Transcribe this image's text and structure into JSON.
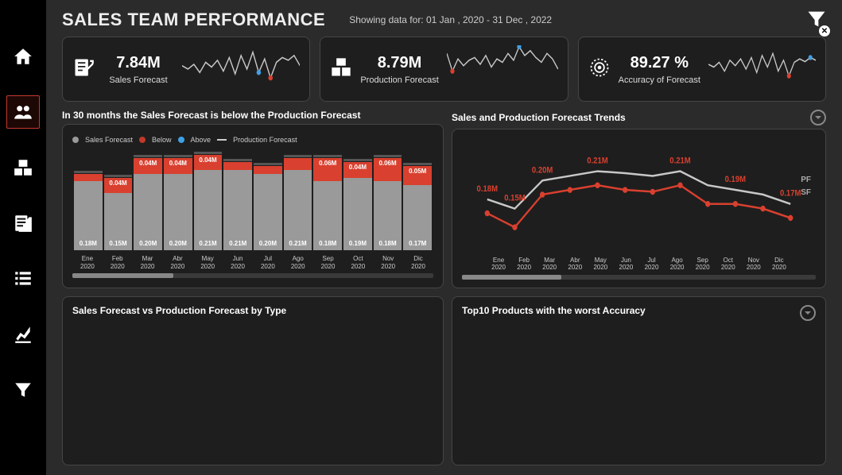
{
  "colors": {
    "bg": "#2b2b2b",
    "panel": "#1e1e1e",
    "border": "#454545",
    "red": "#c0392b",
    "red_bright": "#d9402f",
    "grey_bar": "#9a9a9a",
    "grey_line": "#c8c8c8",
    "blue_dot": "#3fa0e6",
    "text": "#ffffff",
    "muted": "#cccccc"
  },
  "header": {
    "title": "SALES TEAM PERFORMANCE",
    "date_range": "Showing data for: 01 Jan , 2020 - 31 Dec , 2022"
  },
  "kpi": [
    {
      "value": "7.84M",
      "label": "Sales Forecast",
      "spark": [
        40,
        35,
        42,
        30,
        45,
        38,
        48,
        32,
        52,
        28,
        55,
        35,
        60,
        30,
        50,
        22,
        45,
        52,
        48,
        55,
        40
      ],
      "red_idx": 15,
      "blue_idx": 13
    },
    {
      "value": "8.79M",
      "label": "Production Forecast",
      "spark": [
        58,
        32,
        50,
        40,
        48,
        52,
        42,
        55,
        38,
        50,
        45,
        58,
        48,
        68,
        55,
        62,
        52,
        45,
        58,
        50,
        35
      ],
      "red_idx": 1,
      "blue_idx": 13
    },
    {
      "value": "89.27 %",
      "label": "Accuracy of Forecast",
      "spark": [
        42,
        38,
        45,
        32,
        48,
        40,
        50,
        35,
        52,
        30,
        55,
        38,
        58,
        32,
        48,
        25,
        45,
        50,
        46,
        52,
        48
      ],
      "red_idx": 15,
      "blue_idx": 19
    }
  ],
  "bar_panel": {
    "title_prefix": "In ",
    "title_count": "30",
    "title_suffix": " months the Sales Forecast is below the Production Forecast",
    "legend": {
      "sales": "Sales Forecast",
      "below": "Below",
      "above": "Above",
      "prod": "Production Forecast"
    },
    "categories": [
      "Ene 2020",
      "Feb 2020",
      "Mar 2020",
      "Abr 2020",
      "May 2020",
      "Jun 2020",
      "Jul 2020",
      "Ago 2020",
      "Sep 2020",
      "Oct 2020",
      "Nov 2020",
      "Dic 2020"
    ],
    "grey_values": [
      0.18,
      0.15,
      0.2,
      0.2,
      0.21,
      0.21,
      0.2,
      0.21,
      0.18,
      0.19,
      0.18,
      0.17
    ],
    "red_values": [
      0.02,
      0.04,
      0.04,
      0.04,
      0.04,
      0.02,
      0.02,
      0.03,
      0.06,
      0.04,
      0.06,
      0.05
    ],
    "grey_labels": [
      "0.18M",
      "0.15M",
      "0.20M",
      "0.20M",
      "0.21M",
      "0.21M",
      "0.20M",
      "0.21M",
      "0.18M",
      "0.19M",
      "0.18M",
      "0.17M"
    ],
    "red_labels": [
      "",
      "0.04M",
      "0.04M",
      "0.04M",
      "0.04M",
      "",
      "",
      "",
      "0.06M",
      "0.04M",
      "0.06M",
      "0.05M"
    ],
    "ymax": 0.27,
    "scroll_pct": 28
  },
  "line_panel": {
    "title": "Sales and Production Forecast Trends",
    "categories": [
      "Ene 2020",
      "Feb 2020",
      "Mar 2020",
      "Abr 2020",
      "May 2020",
      "Jun 2020",
      "Jul 2020",
      "Ago 2020",
      "Sep 2020",
      "Oct 2020",
      "Nov 2020",
      "Dic 2020"
    ],
    "pf_values": [
      0.18,
      0.17,
      0.2,
      0.205,
      0.21,
      0.208,
      0.205,
      0.21,
      0.195,
      0.19,
      0.185,
      0.175
    ],
    "sf_values": [
      0.165,
      0.15,
      0.185,
      0.19,
      0.195,
      0.19,
      0.188,
      0.195,
      0.175,
      0.175,
      0.17,
      0.16
    ],
    "value_labels": {
      "0": "0.18M",
      "1": "0.15M",
      "2": "0.20M",
      "4": "0.21M",
      "7": "0.21M",
      "9": "0.19M",
      "11": "0.17M"
    },
    "pf_label": "PF",
    "sf_label": "SF",
    "scroll_pct": 28
  },
  "bottom_left": {
    "title": "Sales Forecast vs Production Forecast by Type"
  },
  "bottom_right": {
    "title": "Top10 Products with the worst Accuracy"
  }
}
